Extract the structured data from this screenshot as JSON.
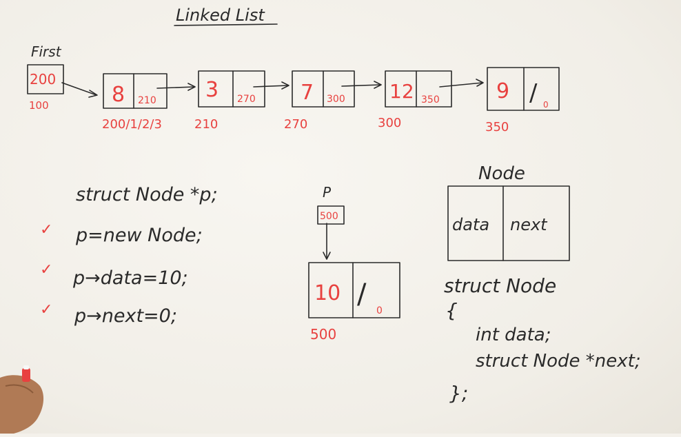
{
  "title": "Linked List",
  "first": {
    "label": "First",
    "value": "200",
    "address": "100"
  },
  "nodes": [
    {
      "data": "8",
      "next": "210",
      "address": "200/1/2/3"
    },
    {
      "data": "3",
      "next": "270",
      "address": "210"
    },
    {
      "data": "7",
      "next": "300",
      "address": "270"
    },
    {
      "data": "12",
      "next": "350",
      "address": "300"
    },
    {
      "data": "9",
      "next": "/",
      "null_mark": "0",
      "address": "350"
    }
  ],
  "code": {
    "lines": [
      "struct Node *p;",
      "p=new Node;",
      "p→data=10;",
      "p→next=0;"
    ],
    "checks": [
      "✓",
      "✓",
      "✓"
    ]
  },
  "pointer_p": {
    "label": "P",
    "value": "500",
    "node_data": "10",
    "node_next": "/",
    "null_mark": "0",
    "address": "500"
  },
  "node_struct": {
    "title": "Node",
    "field_data": "data",
    "field_next": "next",
    "definition": [
      "struct Node",
      "{",
      "int data;",
      "struct Node *next;",
      "};"
    ]
  },
  "colors": {
    "ink": "#2a2a2a",
    "marker_red": "#e8413f",
    "board": "#f4f1eb"
  }
}
